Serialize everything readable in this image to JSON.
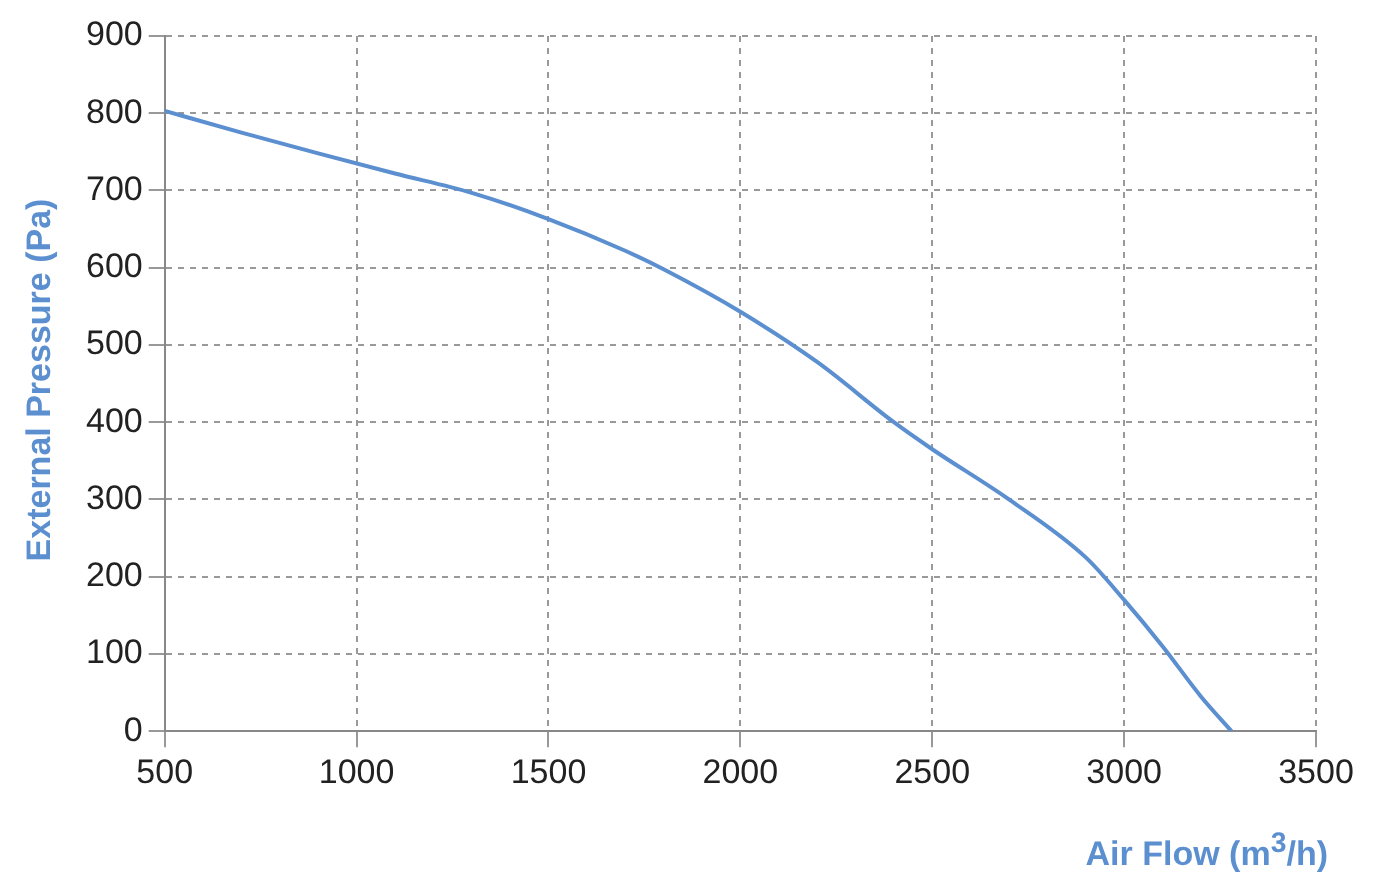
{
  "chart_data": {
    "type": "line",
    "xlabel": "Air Flow (m$^{3}$/h)",
    "ylabel": "External Pressure (Pa)",
    "x": [
      500,
      700,
      900,
      1100,
      1300,
      1500,
      1700,
      1800,
      2000,
      2200,
      2400,
      2500,
      2700,
      2900,
      3000,
      3100,
      3200,
      3280
    ],
    "series": [
      {
        "color": "#5b8fd0",
        "values": [
          803,
          775,
          748,
          722,
          697,
          663,
          622,
          598,
          543,
          478,
          400,
          365,
          300,
          225,
          170,
          110,
          45,
          0
        ]
      }
    ],
    "xlim": [
      500,
      3500
    ],
    "xticks": [
      500,
      1000,
      1500,
      2000,
      2500,
      3000,
      3500
    ],
    "ylim": [
      0,
      900
    ],
    "yticks": [
      0,
      100,
      200,
      300,
      400,
      500,
      600,
      700,
      800,
      900
    ],
    "grid": true,
    "marker": "none",
    "line_style": "solid",
    "legend": false
  }
}
